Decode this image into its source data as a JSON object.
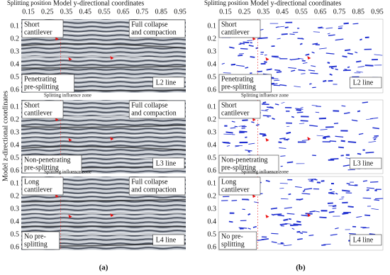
{
  "figure": {
    "x_axis_prefix": "Splitting position",
    "x_axis_label": "Model y-directional coordinates",
    "y_axis_label": "Model z-directional coordinates",
    "x_ticks": [
      0.15,
      0.25,
      0.35,
      0.45,
      0.55,
      0.65,
      0.75,
      0.85,
      0.95
    ],
    "y_ticks": [
      0.1,
      0.2,
      0.3,
      0.4,
      0.5,
      0.6
    ],
    "zone_label": "Splitting influence zone",
    "panels": [
      {
        "caption": "(a)",
        "rows": [
          {
            "left_note": [
              "Short",
              "cantilever"
            ],
            "right_note": [
              "Full collapse",
              "and compaction"
            ],
            "bottom_note": [
              "Penetrating",
              "pre-splitting"
            ],
            "line": "L2 line"
          },
          {
            "left_note": [
              "Short",
              "cantilever"
            ],
            "right_note": [
              "Full collapse",
              "and compaction"
            ],
            "bottom_note": [
              "Non-penetrating",
              "pre-splitting"
            ],
            "line": "L3 line"
          },
          {
            "left_note": [
              "Long",
              "cantilever"
            ],
            "right_note": [
              "Full collapse",
              "and compaction"
            ],
            "bottom_note": [
              "No pre-",
              "splitting"
            ],
            "line": "L4 line"
          }
        ]
      },
      {
        "caption": "(b)",
        "rows": [
          {
            "left_note": [
              "Short",
              "cantilever"
            ],
            "bottom_note": [
              "Penetrating",
              "pre-splitting"
            ],
            "line": "L2 line"
          },
          {
            "left_note": [
              "Short",
              "cantilever"
            ],
            "bottom_note": [
              "Non-penetrating",
              "pre-splitting"
            ],
            "line": "L3 line"
          },
          {
            "left_note": [
              "Long",
              "cantilever"
            ],
            "bottom_note": [
              "No pre-",
              "splitting"
            ],
            "line": "L4 line"
          }
        ]
      }
    ]
  }
}
